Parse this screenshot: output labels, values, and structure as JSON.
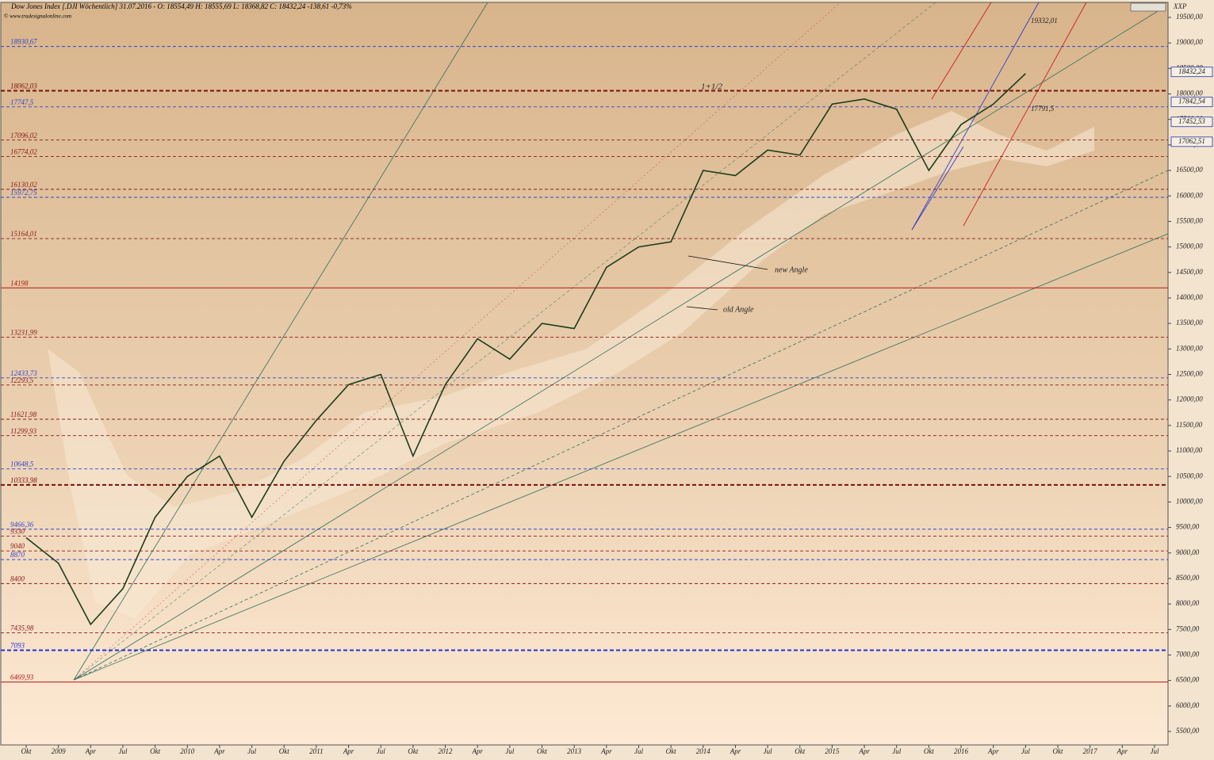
{
  "chart_data": {
    "type": "line",
    "title": "Dow Jones Index [.DJI Wöchentlich] 31.07.2016 - O: 18554,49 H: 18555,69 L: 18368,82 C: 18432,24 -138,61 -0,73%",
    "subtitle": "© www.tradesignalonline.com",
    "axis_name": "XXP",
    "categories": [
      "Okt",
      "2009",
      "Apr",
      "Jul",
      "Okt",
      "2010",
      "Apr",
      "Jul",
      "Okt",
      "2011",
      "Apr",
      "Jul",
      "Okt",
      "2012",
      "Apr",
      "Jul",
      "Okt",
      "2013",
      "Apr",
      "Jul",
      "Okt",
      "2014",
      "Apr",
      "Jul",
      "Okt",
      "2015",
      "Apr",
      "Jul",
      "Okt",
      "2016",
      "Apr",
      "Jul",
      "Okt",
      "2017",
      "Apr",
      "Jul"
    ],
    "series": [
      {
        "name": "DJI",
        "color": "#1b3d1b",
        "values": [
          9300,
          8800,
          7600,
          8300,
          9700,
          10500,
          10900,
          9700,
          10800,
          11600,
          12300,
          12500,
          10900,
          12300,
          13200,
          12800,
          13500,
          13400,
          14600,
          15000,
          15100,
          16500,
          16400,
          16900,
          16800,
          17800,
          17900,
          17700,
          16500,
          17400,
          17800,
          18400,
          null,
          null,
          null,
          null
        ]
      }
    ],
    "ylim": [
      5236,
      19795
    ],
    "yticks": [
      {
        "value": 5500,
        "label": "5500,00"
      },
      {
        "value": 6000,
        "label": "6000,00"
      },
      {
        "value": 6500,
        "label": "6500,00"
      },
      {
        "value": 7000,
        "label": "7000,00"
      },
      {
        "value": 7500,
        "label": "7500,00"
      },
      {
        "value": 8000,
        "label": "8000,00"
      },
      {
        "value": 8500,
        "label": "8500,00"
      },
      {
        "value": 9000,
        "label": "9000,00"
      },
      {
        "value": 9500,
        "label": "9500,00"
      },
      {
        "value": 10000,
        "label": "10000,00"
      },
      {
        "value": 10500,
        "label": "10500,00"
      },
      {
        "value": 11000,
        "label": "11000,00"
      },
      {
        "value": 11500,
        "label": "11500,00"
      },
      {
        "value": 12000,
        "label": "12000,00"
      },
      {
        "value": 12500,
        "label": "12500,00"
      },
      {
        "value": 13000,
        "label": "13000,00"
      },
      {
        "value": 13500,
        "label": "13500,00"
      },
      {
        "value": 14000,
        "label": "14000,00"
      },
      {
        "value": 14500,
        "label": "14500,00"
      },
      {
        "value": 15000,
        "label": "15000,00"
      },
      {
        "value": 15500,
        "label": "15500,00"
      },
      {
        "value": 16000,
        "label": "16000,00"
      },
      {
        "value": 16500,
        "label": "16500,00"
      },
      {
        "value": 17000,
        "label": "17000,00"
      },
      {
        "value": 17500,
        "label": "17500,00"
      },
      {
        "value": 18000,
        "label": "18000,00"
      },
      {
        "value": 18500,
        "label": "18500,00"
      },
      {
        "value": 19000,
        "label": "19000,00"
      },
      {
        "value": 19500,
        "label": "19500,00"
      }
    ],
    "levels": [
      {
        "value": 18930.67,
        "label": "18930,67",
        "color": "#3344cc",
        "style": "dashed"
      },
      {
        "value": 18062.03,
        "label": "18062,03",
        "color": "#7a1010",
        "style": "thick"
      },
      {
        "value": 17747.5,
        "label": "17747,5",
        "color": "#3344cc",
        "style": "dashed"
      },
      {
        "value": 17096.02,
        "label": "17096,02",
        "color": "#8b1a1a",
        "style": "dashed"
      },
      {
        "value": 16774.02,
        "label": "16774,02",
        "color": "#8b1a1a",
        "style": "dashed"
      },
      {
        "value": 16130.02,
        "label": "16130,02",
        "color": "#8b1a1a",
        "style": "dashed"
      },
      {
        "value": 15972.75,
        "label": "15972,75",
        "color": "#3344cc",
        "style": "dashed"
      },
      {
        "value": 15164.01,
        "label": "15164,01",
        "color": "#8b1a1a",
        "style": "dashed"
      },
      {
        "value": 14198,
        "label": "14198",
        "color": "#b01818",
        "style": "solid"
      },
      {
        "value": 13231.99,
        "label": "13231,99",
        "color": "#8b1a1a",
        "style": "dashed"
      },
      {
        "value": 12433.73,
        "label": "12433,73",
        "color": "#3344cc",
        "style": "dashed"
      },
      {
        "value": 12293.5,
        "label": "12293,5",
        "color": "#8b1a1a",
        "style": "dashed"
      },
      {
        "value": 11621.98,
        "label": "11621,98",
        "color": "#8b1a1a",
        "style": "dashed"
      },
      {
        "value": 11299.93,
        "label": "11299,93",
        "color": "#8b1a1a",
        "style": "dashed"
      },
      {
        "value": 10648.5,
        "label": "10648,5",
        "color": "#3344cc",
        "style": "dashed"
      },
      {
        "value": 10333.98,
        "label": "10333,98",
        "color": "#7a1010",
        "style": "thick"
      },
      {
        "value": 9466.36,
        "label": "9466,36",
        "color": "#3344cc",
        "style": "dashed"
      },
      {
        "value": 9330,
        "label": "9330",
        "color": "#8b1a1a",
        "style": "dashed"
      },
      {
        "value": 9040,
        "label": "9040",
        "color": "#8b1a1a",
        "style": "dashed"
      },
      {
        "value": 8870,
        "label": "8870",
        "color": "#3344cc",
        "style": "dashed"
      },
      {
        "value": 8400,
        "label": "8400",
        "color": "#8b1a1a",
        "style": "dashed"
      },
      {
        "value": 7435.98,
        "label": "7435,98",
        "color": "#8b1a1a",
        "style": "dashed"
      },
      {
        "value": 7093,
        "label": "7093",
        "color": "#2233dd",
        "style": "thick"
      },
      {
        "value": 6469.93,
        "label": "6469,93",
        "color": "#b01818",
        "style": "solid"
      }
    ],
    "price_markers": [
      {
        "value": 18432.24,
        "label": "18432,24"
      },
      {
        "value": 17842.54,
        "label": "17842,54"
      },
      {
        "value": 17452.53,
        "label": "17452,53"
      },
      {
        "value": 17062.51,
        "label": "17062,51"
      }
    ],
    "annotations": [
      "1+1/2",
      "new Angle",
      "old Angle",
      "19332,01",
      "17791,5"
    ]
  }
}
